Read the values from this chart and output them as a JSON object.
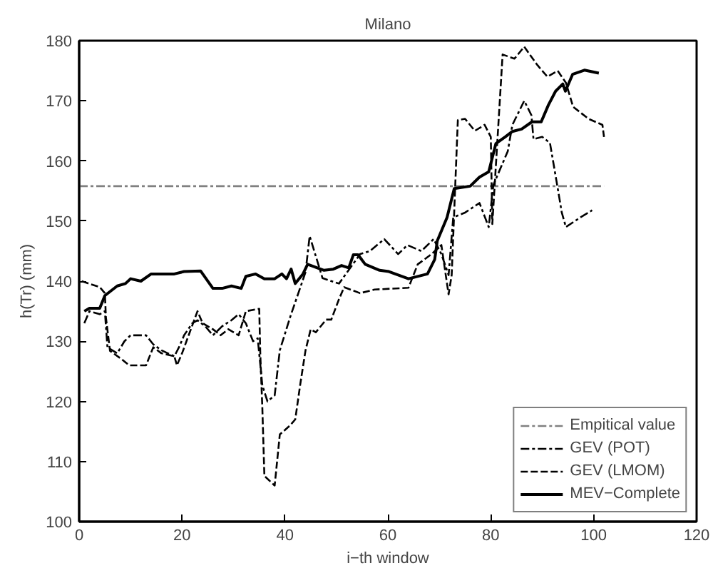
{
  "chart_data": {
    "type": "line",
    "title": "Milano",
    "xlabel": "i−th window",
    "ylabel": "h(Tr) (mm)",
    "xlim": [
      0,
      120
    ],
    "ylim": [
      100,
      180
    ],
    "xticks": [
      0,
      20,
      40,
      60,
      80,
      100,
      120
    ],
    "yticks": [
      100,
      110,
      120,
      130,
      140,
      150,
      160,
      170,
      180
    ],
    "grid": false,
    "legend": "bottom right",
    "marker": "none",
    "series": [
      {
        "name": "Empitical value",
        "color": "#808080",
        "line_style": "dashdot",
        "x": [
          0,
          102
        ],
        "values": [
          155.8,
          155.8
        ]
      },
      {
        "name": "GEV (POT)",
        "color": "#000000",
        "line_style": "dashdot",
        "x": [
          1,
          2,
          4,
          5,
          5.5,
          7.4,
          8.8,
          10,
          13,
          14.4,
          16,
          18.5,
          19.4,
          20.4,
          22,
          23,
          24.5,
          26,
          27.8,
          29.6,
          31,
          32.4,
          33.8,
          34.7,
          35.6,
          36.6,
          38,
          39,
          41,
          42.6,
          44,
          44.8,
          47.3,
          50.5,
          54.6,
          56.5,
          59.3,
          62,
          63.8,
          66.5,
          68.9,
          70.4,
          71.8,
          72.7,
          75,
          77.8,
          79.6,
          80.5,
          83.3,
          84.2,
          86.5,
          87.9,
          88.3,
          90,
          91.5,
          92.9,
          93.8,
          94.6,
          97.4,
          99.7
        ],
        "values": [
          133,
          135,
          134.5,
          135,
          129,
          128,
          130,
          131,
          131,
          129.5,
          128.5,
          127.5,
          129,
          131,
          133,
          133.5,
          132.5,
          131,
          132.5,
          133.5,
          134.5,
          133,
          130,
          130.5,
          122.7,
          120,
          121,
          128.5,
          134,
          138,
          141.5,
          147.5,
          140.5,
          139.6,
          144.5,
          145,
          147,
          144.5,
          146,
          145,
          147,
          144.5,
          141,
          150.6,
          151.4,
          153,
          149,
          156,
          161.6,
          166,
          170,
          167.6,
          163.6,
          164,
          163,
          156,
          151.4,
          149,
          150.6,
          151.8
        ]
      },
      {
        "name": "GEV (LMOM)",
        "color": "#000000",
        "line_style": "dashed",
        "x": [
          0.5,
          4,
          5,
          5.2,
          6,
          8.3,
          9.7,
          13,
          14.4,
          16,
          18.5,
          19,
          20,
          23,
          24,
          26,
          27.5,
          29,
          31,
          32.4,
          35,
          35.2,
          35.6,
          36,
          38,
          39,
          41,
          42,
          43,
          44,
          45,
          46,
          48,
          49,
          50.5,
          51.5,
          54.6,
          57.4,
          64,
          65.8,
          68.5,
          70.4,
          71.8,
          72.4,
          73.6,
          75,
          76.9,
          78.8,
          80,
          80.3,
          82.3,
          84.6,
          86.5,
          89,
          91,
          93,
          94.6,
          96,
          99,
          101.7,
          102
        ],
        "values": [
          140,
          139,
          138,
          134,
          128.4,
          127,
          126,
          126,
          129,
          128,
          127.5,
          126,
          128,
          135,
          133,
          132,
          131,
          132,
          131,
          135,
          135.4,
          128,
          119,
          107.6,
          106,
          114.5,
          116,
          117,
          123,
          128.5,
          132,
          131.5,
          133.6,
          133.6,
          137,
          139,
          138,
          138.6,
          138.9,
          142.8,
          144.5,
          146,
          137.8,
          141,
          166.8,
          167,
          165,
          166,
          164,
          149.5,
          177.7,
          177,
          179,
          176,
          174,
          175,
          173,
          169,
          167,
          166,
          164
        ]
      },
      {
        "name": "MEV−Complete",
        "color": "#000000",
        "line_style": "solid",
        "x": [
          1,
          2,
          4,
          5,
          7.4,
          9,
          10,
          12,
          14,
          18.5,
          20.4,
          23.6,
          26,
          27.8,
          29.6,
          31.5,
          32.4,
          34.3,
          36,
          38,
          39.4,
          40.3,
          41.2,
          42,
          43.5,
          44.4,
          47.6,
          49.4,
          51,
          52.4,
          53.3,
          54.2,
          55.6,
          58.4,
          60.2,
          64,
          67.7,
          69.1,
          69.6,
          71.5,
          72.9,
          76,
          77.8,
          79.6,
          81,
          82.8,
          84.2,
          86,
          88,
          89.8,
          91.2,
          92.6,
          94,
          94.5,
          95.9,
          98.2,
          101
        ],
        "values": [
          135,
          135.5,
          135.5,
          137.6,
          139.2,
          139.6,
          140.4,
          140,
          141.2,
          141.2,
          141.6,
          141.7,
          138.8,
          138.8,
          139.2,
          138.8,
          140.8,
          141.2,
          140.4,
          140.4,
          141.2,
          140.4,
          142,
          139.6,
          141.2,
          142.8,
          141.8,
          142,
          142.6,
          142.2,
          144.4,
          144.4,
          142.8,
          141.8,
          141.6,
          140.4,
          141.2,
          143.6,
          146.7,
          150.6,
          155.4,
          155.8,
          157.3,
          158.2,
          162.9,
          164,
          164.9,
          165.3,
          166.5,
          166.5,
          169.3,
          171.6,
          172.8,
          171.6,
          174.4,
          175.1,
          174.6
        ]
      }
    ]
  }
}
